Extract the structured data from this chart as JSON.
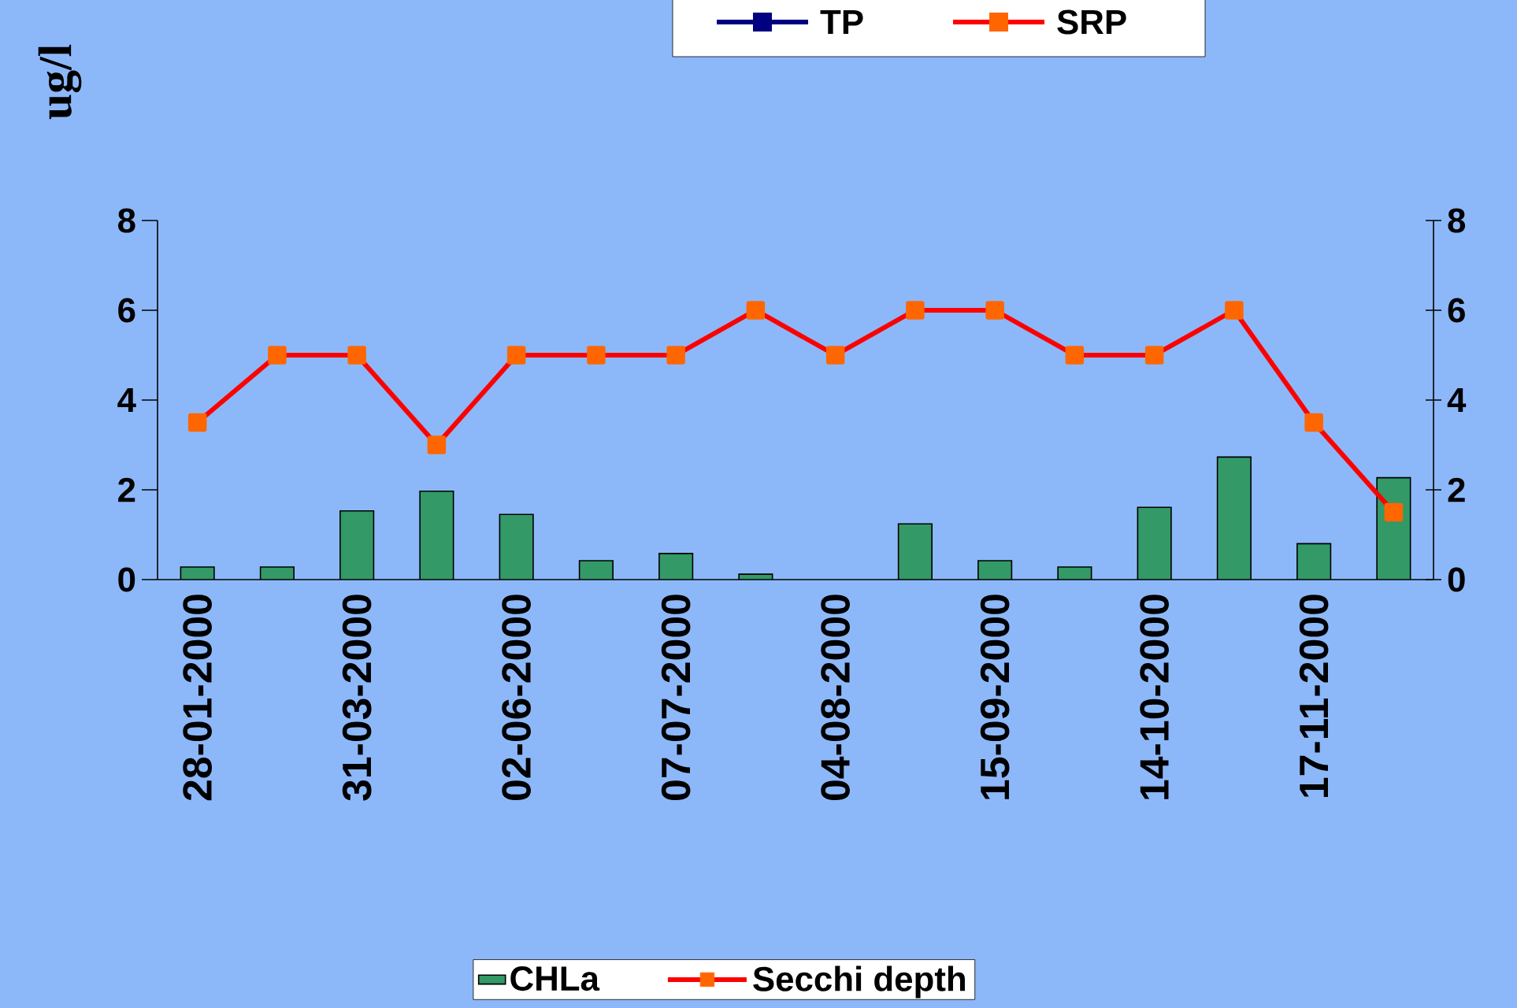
{
  "chart_data": [
    {
      "type": "other",
      "ylabel": "ug/l",
      "annotations": [
        "TP",
        "SRP"
      ]
    },
    {
      "type": "bar",
      "categories": [
        "28-01-2000",
        null,
        "31-03-2000",
        null,
        "02-06-2000",
        null,
        "07-07-2000",
        null,
        "04-08-2000",
        null,
        "15-09-2000",
        null,
        "14-10-2000",
        null,
        "17-11-2000",
        null
      ],
      "ylim": [
        0,
        8
      ],
      "yticks": [
        0,
        2,
        4,
        6,
        8
      ],
      "y2lim": [
        0,
        8
      ],
      "y2ticks": [
        0,
        2,
        4,
        6,
        8
      ],
      "legend": "bottom",
      "marker": "square",
      "series": [
        {
          "name": "CHLa",
          "color": "#339966",
          "values": [
            0.28,
            0.28,
            1.53,
            1.97,
            1.45,
            0.42,
            0.58,
            0.12,
            null,
            1.24,
            0.42,
            0.28,
            1.61,
            2.73,
            0.8,
            2.27
          ]
        },
        {
          "name": "Secchi depth",
          "type": "line",
          "axis": "y2",
          "color": "#ff0000",
          "values": [
            3.5,
            5,
            5,
            3,
            5,
            5,
            5,
            6,
            5,
            6,
            6,
            5,
            5,
            6,
            3.5,
            1.5
          ]
        }
      ]
    }
  ]
}
